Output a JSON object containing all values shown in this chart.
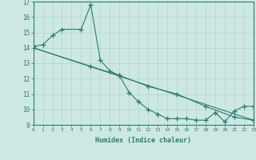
{
  "line1_x": [
    0,
    1,
    2,
    3,
    5,
    6,
    7,
    8,
    9,
    10,
    11,
    12,
    13,
    14,
    15,
    16,
    17,
    18,
    19,
    20,
    21,
    22,
    23
  ],
  "line1_y": [
    14.1,
    14.2,
    14.8,
    15.2,
    15.2,
    16.8,
    13.2,
    12.5,
    12.2,
    11.1,
    10.5,
    10.0,
    9.7,
    9.4,
    9.4,
    9.4,
    9.3,
    9.3,
    9.8,
    9.2,
    9.9,
    10.2,
    10.2
  ],
  "line2_x": [
    0,
    6,
    9,
    12,
    15,
    18,
    21,
    23
  ],
  "line2_y": [
    14.0,
    12.8,
    12.2,
    11.5,
    11.0,
    10.2,
    9.5,
    9.3
  ],
  "line3_x": [
    0,
    23
  ],
  "line3_y": [
    14.0,
    9.3
  ],
  "color": "#2d7d6e",
  "bg_color": "#cde8e2",
  "grid_color": "#b0d4cc",
  "xlabel": "Humidex (Indice chaleur)",
  "xlim": [
    0,
    23
  ],
  "ylim": [
    9,
    17
  ],
  "yticks": [
    9,
    10,
    11,
    12,
    13,
    14,
    15,
    16,
    17
  ],
  "xticks": [
    0,
    1,
    2,
    3,
    4,
    5,
    6,
    7,
    8,
    9,
    10,
    11,
    12,
    13,
    14,
    15,
    16,
    17,
    18,
    19,
    20,
    21,
    22,
    23
  ]
}
